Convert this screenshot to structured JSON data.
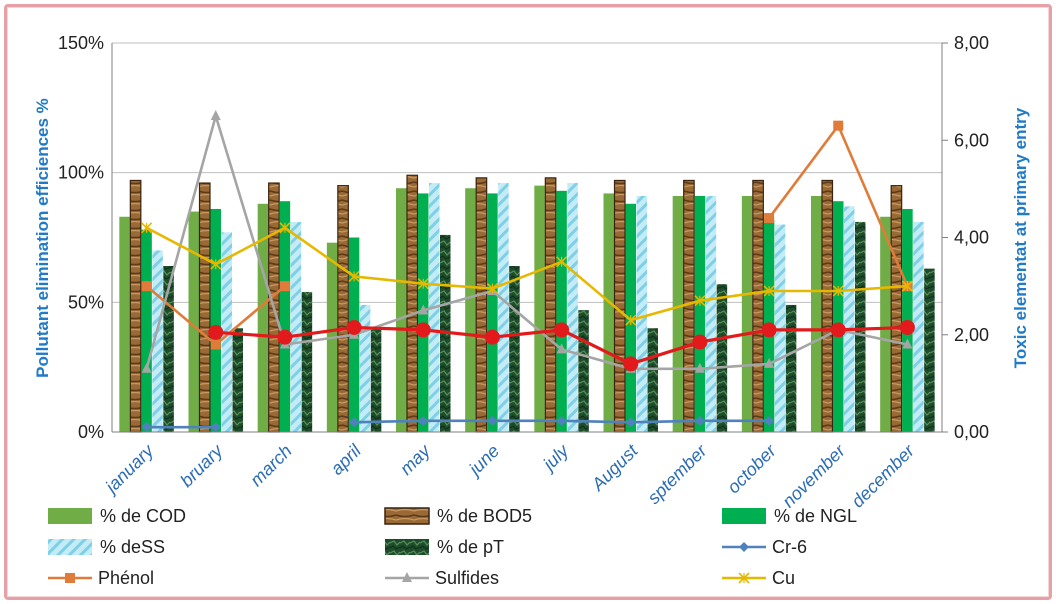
{
  "chart_data": {
    "type": "bar",
    "categories": [
      "january",
      "february",
      "march",
      "april",
      "may",
      "june",
      "july",
      "August",
      "sptember",
      "october",
      "november",
      "december"
    ],
    "category_labels": [
      "january",
      "bruary",
      "march",
      "april",
      "may",
      "june",
      "july",
      "August",
      "sptember",
      "october",
      "november",
      "december"
    ],
    "ylabel": "Pollutant elimination efficiences %",
    "y2label": "Toxic elementat at primary entry",
    "ylim": [
      0,
      150
    ],
    "y_ticks": [
      "0%",
      "50%",
      "100%",
      "150%"
    ],
    "y_tick_values": [
      0,
      50,
      100,
      150
    ],
    "y2lim": [
      0,
      8
    ],
    "y2_ticks": [
      "0,00",
      "2,00",
      "4,00",
      "6,00",
      "8,00"
    ],
    "y2_tick_values": [
      0,
      2,
      4,
      6,
      8
    ],
    "grid": "horizontal",
    "legend_position": "bottom",
    "bar_series": [
      {
        "name": "% de COD",
        "color": "#70ad47",
        "pattern": "solid",
        "values": [
          83,
          85,
          88,
          73,
          94,
          94,
          95,
          92,
          91,
          91,
          91,
          83
        ]
      },
      {
        "name": "% de BOD5",
        "color": "#8a5a2b",
        "pattern": "wood",
        "values": [
          97,
          96,
          96,
          95,
          99,
          98,
          98,
          97,
          97,
          97,
          97,
          95
        ]
      },
      {
        "name": "% de NGL",
        "color": "#00b050",
        "pattern": "solid",
        "values": [
          78,
          86,
          89,
          75,
          92,
          92,
          93,
          88,
          91,
          82,
          89,
          86
        ]
      },
      {
        "name": "% deSS",
        "color": "#9fdcf0",
        "pattern": "hatch",
        "values": [
          70,
          77,
          81,
          49,
          96,
          96,
          96,
          91,
          91,
          80,
          87,
          81
        ]
      },
      {
        "name": "% de pT",
        "color": "#1e4d2b",
        "pattern": "marble",
        "values": [
          64,
          40,
          54,
          40,
          76,
          64,
          47,
          40,
          57,
          49,
          81,
          63
        ]
      }
    ],
    "line_series": [
      {
        "name": "Cr-6",
        "color": "#4f81bd",
        "marker": "diamond",
        "axis": "secondary",
        "values": [
          0.1,
          0.1,
          null,
          0.2,
          0.23,
          0.23,
          0.23,
          0.2,
          0.23,
          0.23,
          null,
          null
        ]
      },
      {
        "name": "Phénol",
        "color": "#e07b39",
        "marker": "square",
        "axis": "secondary",
        "values": [
          3.0,
          1.8,
          3.0,
          null,
          null,
          null,
          null,
          null,
          null,
          4.4,
          6.3,
          3.0
        ]
      },
      {
        "name": "Sulfides",
        "color": "#a5a5a5",
        "marker": "triangle",
        "axis": "secondary",
        "values": [
          1.3,
          6.5,
          1.8,
          2.0,
          2.5,
          2.9,
          1.7,
          1.3,
          1.3,
          1.4,
          2.1,
          1.8
        ]
      },
      {
        "name": "Cu",
        "color": "#e6b800",
        "marker": "x",
        "axis": "secondary",
        "values": [
          4.2,
          3.45,
          4.2,
          3.2,
          3.05,
          2.95,
          3.5,
          2.3,
          2.7,
          2.9,
          2.9,
          3.0
        ]
      },
      {
        "name": "",
        "color": "#e31a1c",
        "marker": "circle",
        "axis": "secondary",
        "values": [
          null,
          2.05,
          1.95,
          2.15,
          2.1,
          1.95,
          2.1,
          1.4,
          1.85,
          2.1,
          2.1,
          2.15
        ]
      }
    ],
    "legend_entries": [
      "% de COD",
      "% de BOD5",
      "% de NGL",
      "% deSS",
      "% de pT",
      "Cr-6",
      "Phénol",
      "Sulfides",
      "Cu"
    ]
  }
}
